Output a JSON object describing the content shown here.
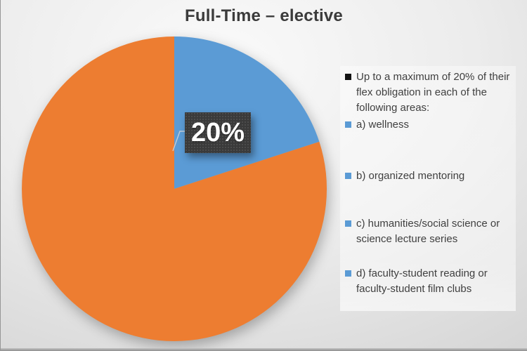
{
  "title": "Full-Time – elective",
  "pie_label": "20%",
  "colors": {
    "blue": "#5B9BD5",
    "orange": "#ED7D31",
    "label_box_bg": "#3A3A3A",
    "label_text": "#FFFFFF",
    "title_text": "#3B3B3B",
    "legend_text": "#404040",
    "legend_marker_black": "#141414"
  },
  "legend": {
    "items": [
      {
        "marker_color": "#141414",
        "label": "Up to a maximum of 20% of their\nflex obligation in each of the\nfollowing areas:"
      },
      {
        "marker_color": "#5B9BD5",
        "label": "a) wellness"
      },
      {
        "marker_color": "#5B9BD5",
        "label": "b) organized mentoring"
      },
      {
        "marker_color": "#5B9BD5",
        "label": "c) humanities/social science or\nscience lecture series"
      },
      {
        "marker_color": "#5B9BD5",
        "label": "d) faculty-student reading or\nfaculty-student film clubs"
      }
    ]
  },
  "chart_data": {
    "type": "pie",
    "title": "Full-Time – elective",
    "slices": [
      {
        "label": "20%",
        "value": 20,
        "color": "#5B9BD5",
        "data_label": "20%"
      },
      {
        "label": "",
        "value": 80,
        "color": "#ED7D31",
        "data_label": ""
      }
    ],
    "start_angle_deg": 0,
    "direction": "clockwise",
    "legend_position": "right",
    "data_label_style": "dark box with white bold text and leader line"
  }
}
